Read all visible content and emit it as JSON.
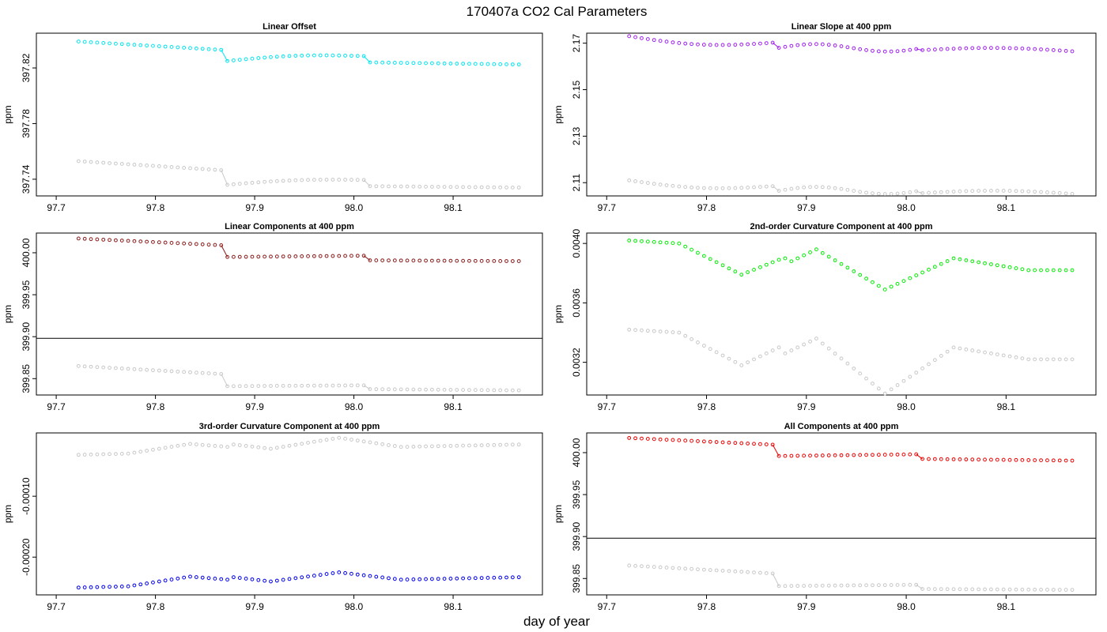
{
  "figure": {
    "title": "170407a   CO2 Cal Parameters",
    "xlabel": "day of year"
  },
  "chart_data": [
    {
      "type": "scatter",
      "title": "Linear Offset",
      "ylabel": "ppm",
      "xlim": [
        97.68,
        98.19
      ],
      "ylim": [
        397.728,
        397.845
      ],
      "xticks": [
        "97.7",
        "97.8",
        "97.9",
        "98.0",
        "98.1"
      ],
      "xtick_values": [
        97.7,
        97.8,
        97.9,
        98.0,
        98.1
      ],
      "yticks": [
        "397.74",
        "397.78",
        "397.82"
      ],
      "ytick_values": [
        397.74,
        397.78,
        397.82
      ],
      "hline": null,
      "x": {
        "start": 97.7225,
        "step": 0.00625,
        "count": 72
      },
      "series": [
        {
          "color": "#00e5ee",
          "segments": [
            {
              "i0": 0,
              "i1": 23,
              "y0": 397.839,
              "y1": 397.833,
              "shape": "linear"
            },
            {
              "i0": 24,
              "i1": 46,
              "y0": 397.825,
              "y1": 397.8285,
              "shape": "bump",
              "amp": 0.002
            },
            {
              "i0": 47,
              "i1": 71,
              "y0": 397.824,
              "y1": 397.8225,
              "shape": "linear"
            }
          ]
        },
        {
          "color": "#c8c8c8",
          "segments": [
            {
              "i0": 0,
              "i1": 23,
              "y0": 397.753,
              "y1": 397.7465,
              "shape": "linear"
            },
            {
              "i0": 24,
              "i1": 46,
              "y0": 397.736,
              "y1": 397.7395,
              "shape": "bump",
              "amp": 0.0015
            },
            {
              "i0": 47,
              "i1": 71,
              "y0": 397.735,
              "y1": 397.734,
              "shape": "linear"
            }
          ]
        }
      ]
    },
    {
      "type": "scatter",
      "title": "Linear Slope at 400 ppm",
      "ylabel": "ppm",
      "xlim": [
        97.68,
        98.19
      ],
      "ylim": [
        2.1043,
        2.1743
      ],
      "xticks": [
        "97.7",
        "97.8",
        "97.9",
        "98.0",
        "98.1"
      ],
      "xtick_values": [
        97.7,
        97.8,
        97.9,
        98.0,
        98.1
      ],
      "yticks": [
        "2.11",
        "2.13",
        "2.15",
        "2.17"
      ],
      "ytick_values": [
        2.11,
        2.13,
        2.15,
        2.17
      ],
      "hline": null,
      "x": {
        "start": 97.7225,
        "step": 0.00625,
        "count": 72
      },
      "series": [
        {
          "color": "#a020f0",
          "segments": [
            {
              "i0": 0,
              "i1": 23,
              "y0": 2.173,
              "y1": 2.1702,
              "shape": "dip",
              "amp": 0.0022
            },
            {
              "i0": 24,
              "i1": 46,
              "y0": 2.168,
              "y1": 2.1675,
              "shape": "wave",
              "amp": 0.0032
            },
            {
              "i0": 47,
              "i1": 71,
              "y0": 2.167,
              "y1": 2.1665,
              "shape": "bump",
              "amp": 0.0012
            }
          ]
        },
        {
          "color": "#c8c8c8",
          "segments": [
            {
              "i0": 0,
              "i1": 23,
              "y0": 2.111,
              "y1": 2.1085,
              "shape": "dip",
              "amp": 0.002
            },
            {
              "i0": 24,
              "i1": 46,
              "y0": 2.1065,
              "y1": 2.1063,
              "shape": "wave",
              "amp": 0.0032
            },
            {
              "i0": 47,
              "i1": 71,
              "y0": 2.1055,
              "y1": 2.1052,
              "shape": "bump",
              "amp": 0.0012
            }
          ]
        }
      ]
    },
    {
      "type": "scatter",
      "title": "Linear Components at 400 ppm",
      "ylabel": "ppm",
      "xlim": [
        97.68,
        98.19
      ],
      "ylim": [
        399.8305,
        400.0235
      ],
      "xticks": [
        "97.7",
        "97.8",
        "97.9",
        "98.0",
        "98.1"
      ],
      "xtick_values": [
        97.7,
        97.8,
        97.9,
        98.0,
        98.1
      ],
      "yticks": [
        "399.85",
        "399.90",
        "399.95",
        "400.00"
      ],
      "ytick_values": [
        399.85,
        399.9,
        399.95,
        400.0
      ],
      "hline": 399.898,
      "x": {
        "start": 97.7225,
        "step": 0.00625,
        "count": 72
      },
      "series": [
        {
          "color": "#8b1a1a",
          "segments": [
            {
              "i0": 0,
              "i1": 23,
              "y0": 400.017,
              "y1": 400.009,
              "shape": "linear"
            },
            {
              "i0": 24,
              "i1": 46,
              "y0": 399.995,
              "y1": 399.9965,
              "shape": "linear"
            },
            {
              "i0": 47,
              "i1": 71,
              "y0": 399.991,
              "y1": 399.99,
              "shape": "linear"
            }
          ]
        },
        {
          "color": "#c8c8c8",
          "segments": [
            {
              "i0": 0,
              "i1": 23,
              "y0": 399.865,
              "y1": 399.8555,
              "shape": "linear"
            },
            {
              "i0": 24,
              "i1": 46,
              "y0": 399.841,
              "y1": 399.842,
              "shape": "linear"
            },
            {
              "i0": 47,
              "i1": 71,
              "y0": 399.8375,
              "y1": 399.836,
              "shape": "linear"
            }
          ]
        }
      ]
    },
    {
      "type": "scatter",
      "title": "2nd-order Curvature Component at 400 ppm",
      "ylabel": "ppm",
      "xlim": [
        97.68,
        98.19
      ],
      "ylim": [
        0.00298,
        0.00407
      ],
      "xticks": [
        "97.7",
        "97.8",
        "97.9",
        "98.0",
        "98.1"
      ],
      "xtick_values": [
        97.7,
        97.8,
        97.9,
        98.0,
        98.1
      ],
      "yticks": [
        "0.0032",
        "0.0036",
        "0.0040"
      ],
      "ytick_values": [
        0.0032,
        0.0036,
        0.004
      ],
      "hline": null,
      "x": {
        "start": 97.7225,
        "step": 0.00625,
        "count": 72
      },
      "series": [
        {
          "color": "#00ee00",
          "keyframes": [
            [
              0,
              0.00402
            ],
            [
              8,
              0.004
            ],
            [
              18,
              0.00379
            ],
            [
              25,
              0.0039
            ],
            [
              24,
              0.00389
            ],
            [
              25,
              0.00386
            ],
            [
              30,
              0.00396
            ],
            [
              41,
              0.00369
            ],
            [
              52,
              0.0039
            ],
            [
              64,
              0.00382
            ],
            [
              71,
              0.00382
            ]
          ]
        },
        {
          "color": "#c8c8c8",
          "keyframes": [
            [
              0,
              0.00342
            ],
            [
              8,
              0.0034
            ],
            [
              18,
              0.00318
            ],
            [
              24,
              0.0033
            ],
            [
              25,
              0.00326
            ],
            [
              30,
              0.00336
            ],
            [
              41,
              0.00299
            ],
            [
              52,
              0.0033
            ],
            [
              64,
              0.00322
            ],
            [
              71,
              0.00322
            ]
          ]
        }
      ]
    },
    {
      "type": "scatter",
      "title": "3rd-order Curvature Component at 400 ppm",
      "ylabel": "ppm",
      "xlim": [
        97.68,
        98.19
      ],
      "ylim": [
        -0.000262,
        4e-06
      ],
      "xticks": [
        "97.7",
        "97.8",
        "97.9",
        "98.0",
        "98.1"
      ],
      "xtick_values": [
        97.7,
        97.8,
        97.9,
        98.0,
        98.1
      ],
      "yticks": [
        "-0.00020",
        "-0.00010"
      ],
      "ytick_values": [
        -0.0002,
        -0.0001
      ],
      "hline": null,
      "x": {
        "start": 97.7225,
        "step": 0.00625,
        "count": 72
      },
      "series": [
        {
          "color": "#0000ee",
          "keyframes": [
            [
              0,
              -0.00025
            ],
            [
              8,
              -0.000248
            ],
            [
              18,
              -0.000232
            ],
            [
              24,
              -0.000237
            ],
            [
              25,
              -0.000233
            ],
            [
              31,
              -0.00024
            ],
            [
              42,
              -0.000225
            ],
            [
              52,
              -0.000237
            ],
            [
              71,
              -0.000233
            ]
          ]
        },
        {
          "color": "#c8c8c8",
          "keyframes": [
            [
              0,
              -3.2e-05
            ],
            [
              8,
              -3e-05
            ],
            [
              18,
              -1.4e-05
            ],
            [
              24,
              -1.9e-05
            ],
            [
              25,
              -1.5e-05
            ],
            [
              31,
              -2.2e-05
            ],
            [
              42,
              -4e-06
            ],
            [
              52,
              -1.9e-05
            ],
            [
              71,
              -1.5e-05
            ]
          ]
        }
      ]
    },
    {
      "type": "scatter",
      "title": "All Components at 400 ppm",
      "ylabel": "ppm",
      "xlim": [
        97.68,
        98.19
      ],
      "ylim": [
        399.8305,
        400.0235
      ],
      "xticks": [
        "97.7",
        "97.8",
        "97.9",
        "98.0",
        "98.1"
      ],
      "xtick_values": [
        97.7,
        97.8,
        97.9,
        98.0,
        98.1
      ],
      "yticks": [
        "399.85",
        "399.90",
        "399.95",
        "400.00"
      ],
      "ytick_values": [
        399.85,
        399.9,
        399.95,
        400.0
      ],
      "hline": 399.898,
      "x": {
        "start": 97.7225,
        "step": 0.00625,
        "count": 72
      },
      "series": [
        {
          "color": "#ee0000",
          "segments": [
            {
              "i0": 0,
              "i1": 23,
              "y0": 400.0175,
              "y1": 400.0095,
              "shape": "linear"
            },
            {
              "i0": 24,
              "i1": 46,
              "y0": 399.996,
              "y1": 399.998,
              "shape": "linear"
            },
            {
              "i0": 47,
              "i1": 71,
              "y0": 399.9925,
              "y1": 399.9905,
              "shape": "linear"
            }
          ]
        },
        {
          "color": "#c8c8c8",
          "segments": [
            {
              "i0": 0,
              "i1": 23,
              "y0": 399.8655,
              "y1": 399.856,
              "shape": "linear"
            },
            {
              "i0": 24,
              "i1": 46,
              "y0": 399.841,
              "y1": 399.8425,
              "shape": "linear"
            },
            {
              "i0": 47,
              "i1": 71,
              "y0": 399.8375,
              "y1": 399.8365,
              "shape": "linear"
            }
          ]
        }
      ]
    }
  ]
}
